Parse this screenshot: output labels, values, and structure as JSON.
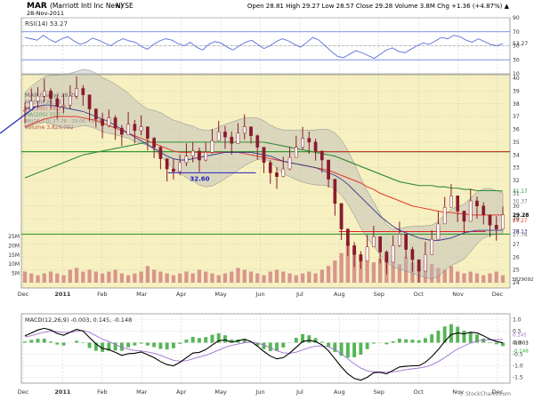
{
  "chart_data": {
    "type": "line",
    "header": {
      "symbol": "MAR",
      "company": "(Marriott Intl Inc New)",
      "exchange": "NYSE",
      "date": "28-Nov-2011",
      "ohlc_text": "Open 28.81  High 29.27  Low 28.57  Close 29.28  Volume 3.8M  Chg +1.36 (+4.87%) ▲"
    },
    "x_tick_labels": [
      "Dec",
      "2011",
      "Feb",
      "Mar",
      "Apr",
      "May",
      "Jun",
      "Jul",
      "Aug",
      "Sep",
      "Oct",
      "Nov",
      "Dec"
    ],
    "rsi_panel": {
      "legend": "RSI(14) 53.27",
      "y_ticks": [
        90,
        70,
        50,
        30,
        10
      ],
      "overbought": 70,
      "oversold": 30,
      "last_value_label": "53.27",
      "values": [
        62,
        60,
        58,
        65,
        59,
        55,
        60,
        63,
        57,
        52,
        55,
        61,
        58,
        54,
        50,
        56,
        60,
        57,
        55,
        49,
        45,
        52,
        57,
        60,
        58,
        53,
        50,
        55,
        48,
        44,
        52,
        56,
        54,
        48,
        44,
        50,
        55,
        58,
        52,
        46,
        50,
        56,
        60,
        57,
        52,
        48,
        55,
        62,
        58,
        50,
        42,
        35,
        33,
        38,
        43,
        40,
        36,
        32,
        38,
        44,
        47,
        42,
        40,
        45,
        50,
        54,
        52,
        57,
        62,
        60,
        65,
        63,
        58,
        55,
        60,
        56,
        52,
        50,
        53
      ]
    },
    "price_panel": {
      "legend_main": "MAR (Daily) 29.28",
      "legend_ma50": "MA(50) 28.13",
      "legend_ma100": "MA(100) 29.27",
      "legend_ma200": "MA(200) 31.17",
      "legend_bb": "BB(20,2.0) 27.76 - 29.06 - 30.37",
      "legend_volume": "Volume 3,829,092",
      "y_ticks": [
        40,
        39,
        38,
        37,
        36,
        35,
        34,
        33,
        32,
        31,
        30,
        29,
        28,
        27,
        26,
        25,
        24
      ],
      "right_labels": [
        "31.17",
        "30.37",
        "29.28",
        "29.27",
        "28.13",
        "27.76"
      ],
      "volume_ticks": [
        "25M",
        "20M",
        "15M",
        "10M",
        "5M"
      ],
      "volume_label": "3829092",
      "annotation_text": "32.60",
      "support_lines": [
        34.25,
        27.8
      ],
      "short_levels": [
        {
          "value": 32.6,
          "from": 0.3,
          "to": 0.48
        },
        {
          "value": 28.0,
          "from": 0.65,
          "to": 0.95
        }
      ],
      "close": [
        37.5,
        38.2,
        38.6,
        39.0,
        38.4,
        37.8,
        37.9,
        38.6,
        39.2,
        38.7,
        37.6,
        36.8,
        36.3,
        36.9,
        36.1,
        35.6,
        36.4,
        35.9,
        36.2,
        35.3,
        34.6,
        33.7,
        32.9,
        32.7,
        33.4,
        33.9,
        34.3,
        33.6,
        34.2,
        35.1,
        35.8,
        35.4,
        34.9,
        35.7,
        36.2,
        35.5,
        34.6,
        33.4,
        32.6,
        32.3,
        32.9,
        33.8,
        34.6,
        35.3,
        35.0,
        34.3,
        33.6,
        32.1,
        30.2,
        28.2,
        26.9,
        26.2,
        25.7,
        26.8,
        27.6,
        26.4,
        25.6,
        26.9,
        27.8,
        26.6,
        25.8,
        24.9,
        26.2,
        27.4,
        28.6,
        29.9,
        30.8,
        29.6,
        28.8,
        30.4,
        30.0,
        29.3,
        28.5,
        28.2,
        29.3
      ],
      "ma50": [
        37.6,
        37.7,
        37.8,
        37.9,
        37.9,
        37.8,
        37.7,
        37.6,
        37.5,
        37.4,
        37.2,
        37.0,
        36.8,
        36.6,
        36.3,
        36.0,
        35.7,
        35.4,
        35.1,
        34.8,
        34.5,
        34.2,
        33.9,
        33.7,
        33.6,
        33.6,
        33.7,
        33.8,
        33.9,
        34.0,
        34.1,
        34.2,
        34.2,
        34.2,
        34.2,
        34.2,
        34.1,
        34.0,
        33.9,
        33.7,
        33.5,
        33.4,
        33.3,
        33.2,
        33.1,
        33.0,
        32.8,
        32.6,
        32.4,
        32.1,
        31.7,
        31.2,
        30.7,
        30.2,
        29.7,
        29.2,
        28.8,
        28.4,
        28.1,
        27.9,
        27.7,
        27.5,
        27.4,
        27.3,
        27.3,
        27.4,
        27.5,
        27.7,
        27.9,
        28.0,
        28.1,
        28.1,
        28.1,
        28.1,
        28.1
      ],
      "ma100": [
        36.2,
        36.4,
        36.6,
        36.8,
        36.9,
        37.0,
        37.0,
        37.0,
        37.0,
        36.9,
        36.8,
        36.7,
        36.5,
        36.3,
        36.1,
        35.9,
        35.7,
        35.5,
        35.3,
        35.1,
        34.9,
        34.7,
        34.5,
        34.3,
        34.2,
        34.2,
        34.2,
        34.2,
        34.2,
        34.2,
        34.2,
        34.2,
        34.2,
        34.2,
        34.1,
        34.0,
        33.9,
        33.8,
        33.7,
        33.6,
        33.5,
        33.4,
        33.3,
        33.2,
        33.1,
        33.0,
        32.9,
        32.8,
        32.6,
        32.4,
        32.2,
        32.0,
        31.8,
        31.5,
        31.3,
        31.0,
        30.8,
        30.6,
        30.4,
        30.2,
        30.0,
        29.9,
        29.8,
        29.7,
        29.6,
        29.5,
        29.5,
        29.4,
        29.4,
        29.3,
        29.3,
        29.3,
        29.3,
        29.3,
        29.3
      ],
      "ma200": [
        32.2,
        32.4,
        32.6,
        32.8,
        33.0,
        33.2,
        33.4,
        33.6,
        33.8,
        34.0,
        34.1,
        34.2,
        34.3,
        34.4,
        34.5,
        34.6,
        34.7,
        34.8,
        34.9,
        35.0,
        35.0,
        35.0,
        35.0,
        35.0,
        35.0,
        35.0,
        35.0,
        35.0,
        35.0,
        35.0,
        35.0,
        35.0,
        35.0,
        35.0,
        35.0,
        35.0,
        35.0,
        35.0,
        34.9,
        34.8,
        34.7,
        34.6,
        34.5,
        34.4,
        34.3,
        34.2,
        34.1,
        34.0,
        33.9,
        33.7,
        33.5,
        33.3,
        33.1,
        32.9,
        32.7,
        32.5,
        32.3,
        32.1,
        31.9,
        31.8,
        31.7,
        31.6,
        31.6,
        31.6,
        31.5,
        31.5,
        31.4,
        31.4,
        31.3,
        31.3,
        31.2,
        31.2,
        31.2,
        31.2,
        31.17
      ],
      "volume_millions": [
        6,
        5,
        4,
        5,
        6,
        5,
        4,
        7,
        8,
        6,
        7,
        6,
        5,
        6,
        7,
        5,
        4,
        5,
        6,
        9,
        7,
        6,
        5,
        4,
        5,
        6,
        5,
        7,
        6,
        5,
        4,
        5,
        6,
        8,
        7,
        6,
        5,
        4,
        6,
        7,
        6,
        5,
        4,
        5,
        6,
        5,
        7,
        9,
        12,
        16,
        22,
        18,
        14,
        12,
        11,
        13,
        15,
        12,
        10,
        14,
        11,
        9,
        12,
        10,
        8,
        7,
        9,
        6,
        5,
        6,
        5,
        4,
        5,
        6,
        4
      ]
    },
    "macd_panel": {
      "legend": "MACD(12,26,9) -0.003, 0.145, -0.148",
      "y_ticks": [
        1.0,
        0.5,
        0.0,
        -0.5,
        -1.0,
        -1.5
      ],
      "right_labels": [
        "0.145",
        "-0.003",
        "-0.148"
      ],
      "macd": [
        0.3,
        0.42,
        0.55,
        0.62,
        0.55,
        0.4,
        0.32,
        0.45,
        0.58,
        0.5,
        0.22,
        -0.05,
        -0.25,
        -0.3,
        -0.42,
        -0.55,
        -0.48,
        -0.46,
        -0.4,
        -0.52,
        -0.65,
        -0.82,
        -0.95,
        -1.0,
        -0.85,
        -0.65,
        -0.45,
        -0.42,
        -0.3,
        -0.1,
        0.08,
        0.12,
        0.02,
        0.08,
        0.15,
        0.05,
        -0.15,
        -0.38,
        -0.58,
        -0.7,
        -0.65,
        -0.45,
        -0.2,
        0.05,
        0.1,
        0.05,
        -0.1,
        -0.35,
        -0.7,
        -1.05,
        -1.35,
        -1.55,
        -1.62,
        -1.5,
        -1.3,
        -1.28,
        -1.35,
        -1.2,
        -1.05,
        -1.02,
        -1.0,
        -1.0,
        -0.85,
        -0.6,
        -0.3,
        0.05,
        0.35,
        0.42,
        0.38,
        0.45,
        0.42,
        0.3,
        0.15,
        0.05,
        -0.003
      ],
      "signal": [
        0.25,
        0.3,
        0.38,
        0.45,
        0.5,
        0.48,
        0.44,
        0.45,
        0.5,
        0.52,
        0.45,
        0.3,
        0.15,
        0.05,
        -0.08,
        -0.2,
        -0.28,
        -0.34,
        -0.36,
        -0.4,
        -0.46,
        -0.55,
        -0.66,
        -0.76,
        -0.8,
        -0.78,
        -0.7,
        -0.62,
        -0.54,
        -0.44,
        -0.32,
        -0.2,
        -0.12,
        -0.06,
        0.0,
        0.02,
        -0.02,
        -0.1,
        -0.22,
        -0.35,
        -0.44,
        -0.46,
        -0.41,
        -0.32,
        -0.22,
        -0.15,
        -0.14,
        -0.18,
        -0.3,
        -0.48,
        -0.7,
        -0.92,
        -1.1,
        -1.22,
        -1.26,
        -1.27,
        -1.28,
        -1.26,
        -1.22,
        -1.17,
        -1.13,
        -1.1,
        -1.05,
        -0.96,
        -0.82,
        -0.65,
        -0.45,
        -0.27,
        -0.14,
        -0.02,
        0.07,
        0.12,
        0.13,
        0.12,
        0.145
      ],
      "histogram": [
        0.05,
        0.12,
        0.17,
        0.17,
        0.05,
        -0.08,
        -0.12,
        0.0,
        0.08,
        -0.02,
        -0.23,
        -0.35,
        -0.4,
        -0.35,
        -0.34,
        -0.35,
        -0.2,
        -0.12,
        -0.04,
        -0.12,
        -0.19,
        -0.27,
        -0.29,
        -0.24,
        -0.05,
        0.13,
        0.25,
        0.2,
        0.24,
        0.34,
        0.4,
        0.32,
        0.14,
        0.14,
        0.15,
        0.03,
        -0.13,
        -0.28,
        -0.36,
        -0.35,
        -0.21,
        0.01,
        0.21,
        0.37,
        0.32,
        0.2,
        0.04,
        -0.17,
        -0.4,
        -0.57,
        -0.65,
        -0.63,
        -0.52,
        -0.28,
        -0.04,
        -0.01,
        -0.07,
        0.06,
        0.17,
        0.15,
        0.13,
        0.1,
        0.2,
        0.36,
        0.52,
        0.7,
        0.8,
        0.69,
        0.52,
        0.47,
        0.35,
        0.18,
        0.02,
        -0.07,
        -0.148
      ]
    },
    "colors": {
      "price_bg": "#f7f0c0",
      "rsi_bg": "#ffffff",
      "macd_bg": "#ffffff",
      "rsi_line": "#5a6fd8",
      "price_line": "#8a1a2e",
      "ma50": "#3a3a8c",
      "ma100": "#e33a2c",
      "ma200": "#2e8b3a",
      "bb_fill": "#b8b8b8",
      "volume": "#d08080",
      "support": "#1f8f1f",
      "short_level": "#e02020",
      "level_blue": "#2020c0",
      "macd_line": "#000000",
      "signal_line": "#a070d0",
      "hist": "#3aa83a",
      "grid": "#c8c8c8"
    },
    "credit": "© StockCharts.com"
  }
}
